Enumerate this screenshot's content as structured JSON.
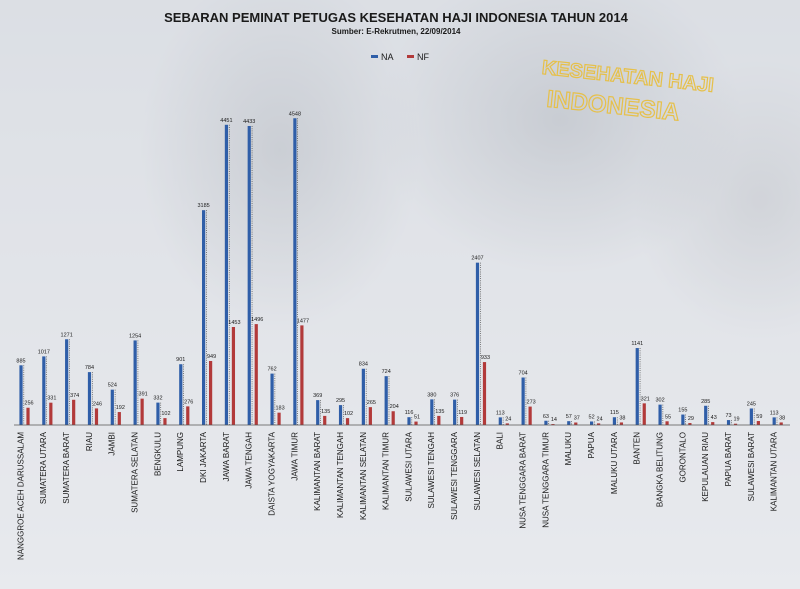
{
  "watermark": {
    "line1": "KESEHATAN HAJI",
    "line2": "INDONESIA"
  },
  "chart_data": {
    "type": "bar",
    "title": "SEBARAN PEMINAT PETUGAS KESEHATAN HAJI INDONESIA TAHUN 2014",
    "subtitle": "Sumber: E-Rekrutmen, 22/09/2014",
    "legend_position": "top",
    "grid": false,
    "ylim": [
      0,
      4700
    ],
    "categories": [
      "NANGGROE ACEH DARUSSALAM",
      "SUMATERA UTARA",
      "SUMATERA BARAT",
      "RIAU",
      "JAMBI",
      "SUMATERA SELATAN",
      "BENGKULU",
      "LAMPUNG",
      "DKI JAKARTA",
      "JAWA BARAT",
      "JAWA TENGAH",
      "DAISTA YOGYAKARTA",
      "JAWA TIMUR",
      "KALIMANTAN BARAT",
      "KALIMANTAN TENGAH",
      "KALIMANTAN SELATAN",
      "KALIMANTAN TIMUR",
      "SULAWESI UTARA",
      "SULAWESI TENGAH",
      "SULAWESI TENGGARA",
      "SULAWESI SELATAN",
      "BALI",
      "NUSA TENGGARA BARAT",
      "NUSA TENGGARA TIMUR",
      "MALUKU",
      "PAPUA",
      "MALUKU UTARA",
      "BANTEN",
      "BANGKA BELITUNG",
      "GORONTALO",
      "KEPULAUAN RIAU",
      "PAPUA BARAT",
      "SULAWESI BARAT",
      "KALIMANTAN UTARA"
    ],
    "series": [
      {
        "name": "NA",
        "color": "#2f5ea8",
        "values": [
          885,
          1017,
          1271,
          784,
          524,
          1254,
          332,
          901,
          3185,
          4451,
          4433,
          762,
          4548,
          369,
          295,
          834,
          724,
          116,
          380,
          376,
          2407,
          113,
          704,
          63,
          57,
          52,
          115,
          1141,
          302,
          155,
          285,
          73,
          245,
          113
        ],
        "labels": [
          "885",
          "1017",
          "1271",
          "784",
          "524",
          "1254",
          "332",
          "901",
          "3185",
          "4451",
          "4433",
          "762",
          "4548",
          "369",
          "295",
          "834",
          "724",
          "116",
          "380",
          "376",
          "2407",
          "113",
          "704",
          "63",
          "57",
          "52",
          "115",
          "1141",
          "302",
          "155",
          "285",
          "73",
          "245",
          "113"
        ]
      },
      {
        "name": "NF",
        "color": "#b23a3a",
        "values": [
          256,
          331,
          374,
          246,
          192,
          391,
          102,
          276,
          949,
          1453,
          1496,
          183,
          1477,
          135,
          102,
          265,
          204,
          51,
          135,
          119,
          933,
          24,
          273,
          14,
          37,
          24,
          38,
          321,
          55,
          29,
          43,
          19,
          59,
          38
        ],
        "labels": [
          "256",
          "331",
          "374",
          "246",
          "192",
          "391",
          "102",
          "276",
          "949",
          "1453",
          "1496",
          "183",
          "1477",
          "135",
          "102",
          "265",
          "204",
          "51",
          "135",
          "119",
          "933",
          "24",
          "273",
          "14",
          "37",
          "24",
          "38",
          "321",
          "55",
          "29",
          "43",
          "19",
          "59",
          "38"
        ]
      }
    ]
  }
}
